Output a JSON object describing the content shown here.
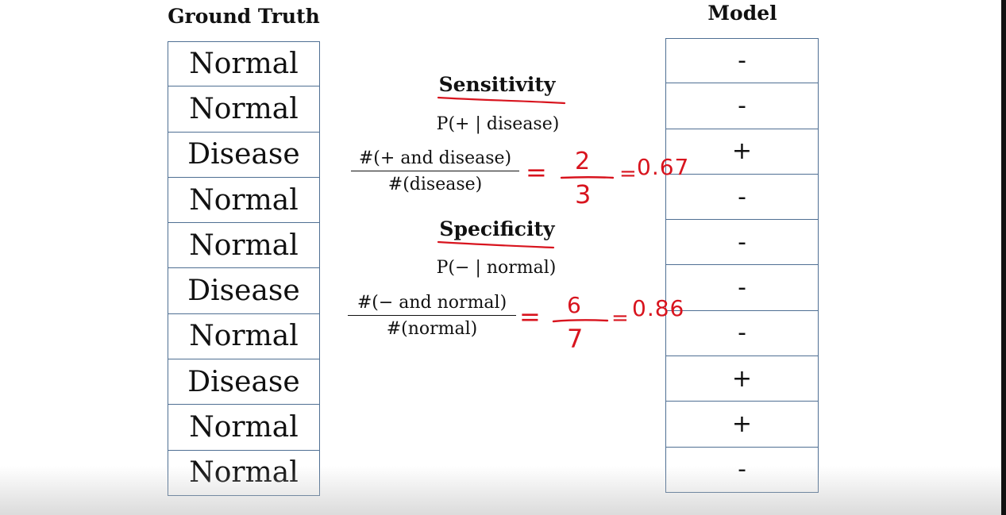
{
  "ground_truth": {
    "heading": "Ground Truth",
    "rows": [
      "Normal",
      "Normal",
      "Disease",
      "Normal",
      "Normal",
      "Disease",
      "Normal",
      "Disease",
      "Normal",
      "Normal"
    ]
  },
  "model": {
    "heading": "Model",
    "rows": [
      "-",
      "-",
      "+",
      "-",
      "-",
      "-",
      "-",
      "+",
      "+",
      "-"
    ]
  },
  "sensitivity": {
    "title": "Sensitivity",
    "prob": "P(+ | disease)",
    "numerator": "#(+ and disease)",
    "denominator": "#(disease)",
    "annotation": {
      "eq1": "=",
      "num": "2",
      "den": "3",
      "eq2": "=",
      "result": "0.67"
    }
  },
  "specificity": {
    "title": "Specificity",
    "prob": "P(− | normal)",
    "numerator": "#(− and normal)",
    "denominator": "#(normal)",
    "annotation": {
      "eq1": "=",
      "num": "6",
      "den": "7",
      "eq2": "=",
      "result": "0.86"
    }
  },
  "colors": {
    "ink": "#d8141e",
    "cell_border": "#4f6f93"
  }
}
